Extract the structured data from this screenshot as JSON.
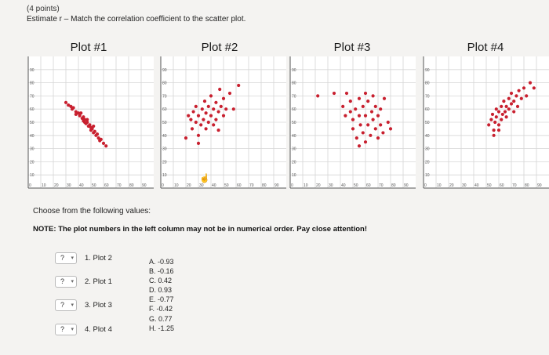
{
  "header": {
    "points": "(4 points)",
    "prompt": "Estimate r – Match the correlation coefficient to the scatter plot."
  },
  "plots": [
    {
      "title": "Plot #1"
    },
    {
      "title": "Plot #2"
    },
    {
      "title": "Plot #3"
    },
    {
      "title": "Plot #4"
    }
  ],
  "instructions": {
    "choose": "Choose from the following values:",
    "note": "NOTE: The plot numbers in the left column may not be in numerical order. Pay close attention!"
  },
  "matches": [
    {
      "selected": "?",
      "label": "1. Plot 2"
    },
    {
      "selected": "?",
      "label": "2. Plot 1"
    },
    {
      "selected": "?",
      "label": "3. Plot 3"
    },
    {
      "selected": "?",
      "label": "4. Plot 4"
    }
  ],
  "options": [
    "A. -0.93",
    "B. -0.16",
    "C. 0.42",
    "D. 0.93",
    "E. -0.77",
    "F. -0.42",
    "G. 0.77",
    "H. -1.25"
  ],
  "colors": {
    "dot": "#c8202f",
    "grid": "#d6d6d6",
    "axis": "#555555",
    "plot_bg": "#ffffff"
  },
  "chart_data": [
    {
      "type": "scatter",
      "title": "Plot #1",
      "xlim": [
        0,
        100
      ],
      "ylim": [
        0,
        100
      ],
      "grid": true,
      "x_ticks": [
        0,
        10,
        20,
        30,
        40,
        50,
        60,
        70,
        80,
        90
      ],
      "y_ticks": [
        10,
        20,
        30,
        40,
        50,
        60,
        70,
        80,
        90
      ],
      "points": [
        [
          30,
          65
        ],
        [
          32,
          63
        ],
        [
          34,
          62
        ],
        [
          35,
          60
        ],
        [
          36,
          61
        ],
        [
          38,
          58
        ],
        [
          38,
          56
        ],
        [
          40,
          57
        ],
        [
          41,
          55
        ],
        [
          42,
          57
        ],
        [
          43,
          53
        ],
        [
          44,
          54
        ],
        [
          45,
          52
        ],
        [
          45,
          50
        ],
        [
          46,
          49
        ],
        [
          47,
          50
        ],
        [
          48,
          47
        ],
        [
          49,
          48
        ],
        [
          50,
          46
        ],
        [
          50,
          44
        ],
        [
          51,
          45
        ],
        [
          52,
          42
        ],
        [
          53,
          43
        ],
        [
          54,
          40
        ],
        [
          55,
          41
        ],
        [
          56,
          38
        ],
        [
          57,
          36
        ],
        [
          58,
          37
        ],
        [
          60,
          34
        ],
        [
          62,
          32
        ],
        [
          47,
          52
        ],
        [
          44,
          51
        ],
        [
          52,
          47
        ]
      ]
    },
    {
      "type": "scatter",
      "title": "Plot #2",
      "xlim": [
        0,
        100
      ],
      "ylim": [
        0,
        100
      ],
      "grid": true,
      "x_ticks": [
        0,
        10,
        20,
        30,
        40,
        50,
        60,
        70,
        80,
        90
      ],
      "y_ticks": [
        10,
        20,
        30,
        40,
        50,
        60,
        70,
        80,
        90
      ],
      "points": [
        [
          20,
          38
        ],
        [
          22,
          55
        ],
        [
          24,
          52
        ],
        [
          25,
          45
        ],
        [
          26,
          58
        ],
        [
          28,
          50
        ],
        [
          28,
          62
        ],
        [
          30,
          40
        ],
        [
          30,
          55
        ],
        [
          32,
          48
        ],
        [
          33,
          60
        ],
        [
          34,
          52
        ],
        [
          35,
          66
        ],
        [
          36,
          45
        ],
        [
          36,
          57
        ],
        [
          38,
          50
        ],
        [
          38,
          62
        ],
        [
          40,
          70
        ],
        [
          40,
          55
        ],
        [
          42,
          48
        ],
        [
          42,
          60
        ],
        [
          44,
          65
        ],
        [
          44,
          52
        ],
        [
          46,
          58
        ],
        [
          47,
          75
        ],
        [
          48,
          62
        ],
        [
          50,
          55
        ],
        [
          50,
          68
        ],
        [
          52,
          60
        ],
        [
          55,
          72
        ],
        [
          58,
          60
        ],
        [
          62,
          78
        ],
        [
          30,
          34
        ],
        [
          46,
          44
        ]
      ]
    },
    {
      "type": "scatter",
      "title": "Plot #3",
      "xlim": [
        0,
        100
      ],
      "ylim": [
        0,
        100
      ],
      "grid": true,
      "x_ticks": [
        0,
        10,
        20,
        30,
        40,
        50,
        60,
        70,
        80,
        90
      ],
      "y_ticks": [
        10,
        20,
        30,
        40,
        50,
        60,
        70,
        80,
        90
      ],
      "points": [
        [
          22,
          70
        ],
        [
          35,
          72
        ],
        [
          42,
          62
        ],
        [
          45,
          72
        ],
        [
          48,
          58
        ],
        [
          48,
          66
        ],
        [
          50,
          52
        ],
        [
          50,
          45
        ],
        [
          52,
          60
        ],
        [
          53,
          38
        ],
        [
          55,
          55
        ],
        [
          55,
          68
        ],
        [
          56,
          48
        ],
        [
          58,
          62
        ],
        [
          58,
          42
        ],
        [
          60,
          55
        ],
        [
          60,
          35
        ],
        [
          62,
          66
        ],
        [
          62,
          48
        ],
        [
          64,
          40
        ],
        [
          65,
          58
        ],
        [
          66,
          52
        ],
        [
          66,
          70
        ],
        [
          68,
          45
        ],
        [
          68,
          62
        ],
        [
          70,
          38
        ],
        [
          70,
          55
        ],
        [
          72,
          48
        ],
        [
          74,
          42
        ],
        [
          75,
          68
        ],
        [
          78,
          50
        ],
        [
          80,
          45
        ],
        [
          55,
          32
        ],
        [
          44,
          55
        ],
        [
          60,
          72
        ],
        [
          72,
          60
        ]
      ]
    },
    {
      "type": "scatter",
      "title": "Plot #4",
      "xlim": [
        0,
        100
      ],
      "ylim": [
        0,
        100
      ],
      "grid": true,
      "x_ticks": [
        0,
        10,
        20,
        30,
        40,
        50,
        60,
        70,
        80,
        90
      ],
      "y_ticks": [
        10,
        20,
        30,
        40,
        50,
        60,
        70,
        80,
        90
      ],
      "points": [
        [
          52,
          48
        ],
        [
          54,
          52
        ],
        [
          55,
          56
        ],
        [
          56,
          44
        ],
        [
          57,
          50
        ],
        [
          58,
          54
        ],
        [
          58,
          60
        ],
        [
          60,
          48
        ],
        [
          60,
          58
        ],
        [
          62,
          52
        ],
        [
          62,
          62
        ],
        [
          63,
          56
        ],
        [
          64,
          66
        ],
        [
          65,
          58
        ],
        [
          66,
          62
        ],
        [
          66,
          54
        ],
        [
          68,
          68
        ],
        [
          68,
          60
        ],
        [
          70,
          64
        ],
        [
          70,
          72
        ],
        [
          72,
          66
        ],
        [
          72,
          58
        ],
        [
          74,
          70
        ],
        [
          75,
          62
        ],
        [
          76,
          74
        ],
        [
          78,
          68
        ],
        [
          80,
          76
        ],
        [
          82,
          70
        ],
        [
          85,
          80
        ],
        [
          88,
          76
        ],
        [
          56,
          40
        ],
        [
          60,
          44
        ]
      ]
    }
  ]
}
